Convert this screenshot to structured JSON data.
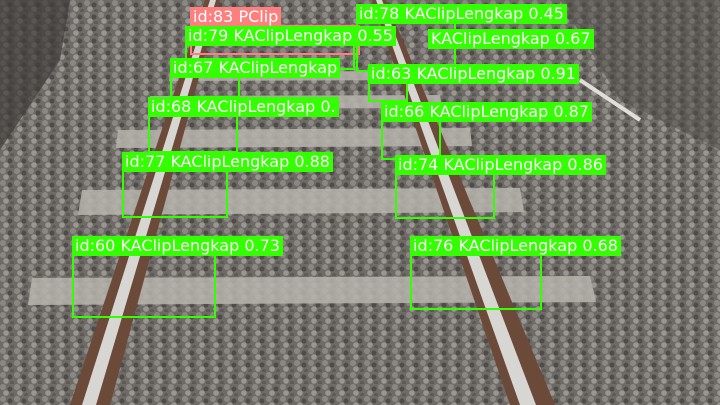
{
  "image": {
    "description_colors": {
      "box": "#33ff00",
      "box_alt": "#ff7f7f",
      "label_text": "#ffffff"
    }
  },
  "detections": [
    {
      "label": "id:83 PClip",
      "partial": true,
      "color": "#ff7f7f"
    },
    {
      "label": "id:78 KAClipLengkap 0.45",
      "color": "#33ff00"
    },
    {
      "label": "id:79 KAClipLengkap 0.55",
      "color": "#33ff00"
    },
    {
      "label": "KAClipLengkap 0.67",
      "partial": true,
      "color": "#33ff00"
    },
    {
      "label": "id:67 KAClipLengkap",
      "partial": true,
      "color": "#33ff00"
    },
    {
      "label": "id:63 KAClipLengkap 0.91",
      "color": "#33ff00"
    },
    {
      "label": "id:68 KAClipLengkap 0.",
      "partial": true,
      "color": "#33ff00"
    },
    {
      "label": "id:66 KAClipLengkap 0.87",
      "color": "#33ff00"
    },
    {
      "label": "id:77 KAClipLengkap 0.88",
      "color": "#33ff00"
    },
    {
      "label": "id:74 KAClipLengkap 0.86",
      "color": "#33ff00"
    },
    {
      "label": "id:60 KAClipLengkap 0.73",
      "color": "#33ff00"
    },
    {
      "label": "id:76 KAClipLengkap 0.68",
      "color": "#33ff00"
    }
  ]
}
